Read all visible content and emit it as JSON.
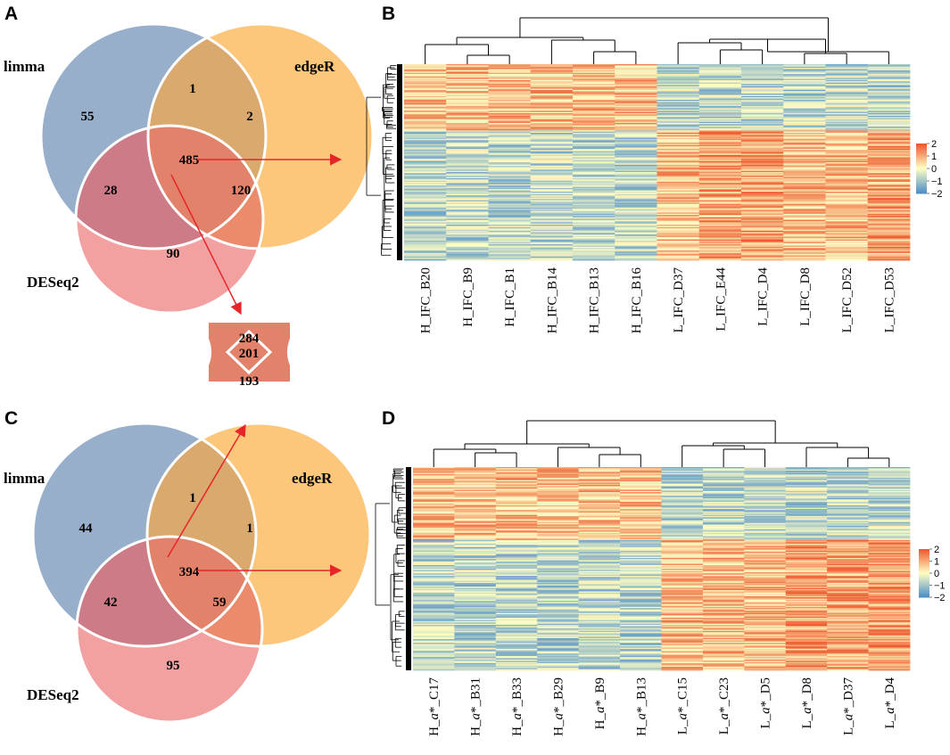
{
  "chart_data": [
    {
      "type": "venn",
      "panel": "A",
      "sets": [
        "limma",
        "edgeR",
        "DESeq2"
      ],
      "regions": {
        "limma_only": 55,
        "edgeR_only": 2,
        "deseq2_only": 90,
        "limma_edgeR": 1,
        "limma_deseq2": 28,
        "edgeR_deseq2": 120,
        "all_three": 485
      },
      "colors": {
        "limma": "#98AFCB",
        "edgeR": "#FCC77A",
        "deseq2": "#F2A0A0",
        "limma_edgeR": "#D9A96E",
        "limma_deseq2": "#CC7B87",
        "edgeR_deseq2": "#EC8A6C",
        "all_three": "#E3826A"
      }
    },
    {
      "type": "venn",
      "panel": "C",
      "sets": [
        "limma",
        "edgeR",
        "DESeq2"
      ],
      "regions": {
        "limma_only": 44,
        "edgeR_only": 1,
        "deseq2_only": 95,
        "limma_edgeR": 1,
        "limma_deseq2": 42,
        "edgeR_deseq2": 59,
        "all_three": 394
      }
    },
    {
      "type": "venn2",
      "panel": "inset",
      "values": {
        "top_only": 284,
        "overlap": 201,
        "bottom_only": 193
      },
      "color": "#E3826A"
    },
    {
      "type": "heatmap",
      "panel": "B",
      "columns": [
        "H_IFC_B20",
        "H_IFC_B9",
        "H_IFC_B1",
        "H_IFC_B14",
        "H_IFC_B13",
        "H_IFC_B16",
        "L_IFC_D37",
        "L_IFC_E44",
        "L_IFC_D4",
        "L_IFC_D8",
        "L_IFC_D52",
        "L_IFC_D53"
      ],
      "colorbar": {
        "ticks": [
          "2",
          "1",
          "0",
          "−1",
          "−2"
        ],
        "range": [
          -2,
          2
        ]
      },
      "upper_block_fraction": 0.34
    },
    {
      "type": "heatmap",
      "panel": "D",
      "columns": [
        {
          "pre": "H_",
          "it": "a",
          "post": "*_C17"
        },
        {
          "pre": "H_",
          "it": "a",
          "post": "*_B31"
        },
        {
          "pre": "H_",
          "it": "a",
          "post": "*_B33"
        },
        {
          "pre": "H_",
          "it": "a",
          "post": "*_B29"
        },
        {
          "pre": "H_",
          "it": "a",
          "post": "*_B9"
        },
        {
          "pre": "H_",
          "it": "a",
          "post": "*_B13"
        },
        {
          "pre": "L_",
          "it": "a",
          "post": "*_C15"
        },
        {
          "pre": "L_",
          "it": "a",
          "post": "*_C23"
        },
        {
          "pre": "L_",
          "it": "a",
          "post": "*_D5"
        },
        {
          "pre": "L_",
          "it": "a",
          "post": "*_D8"
        },
        {
          "pre": "L_",
          "it": "a",
          "post": "*_D37"
        },
        {
          "pre": "L_",
          "it": "a",
          "post": "*_D4"
        }
      ],
      "colorbar": {
        "ticks": [
          "2",
          "1",
          "0",
          "−1",
          "−2"
        ],
        "range": [
          -2,
          2
        ]
      },
      "upper_block_fraction": 0.36
    }
  ],
  "panel_letters": [
    "A",
    "B",
    "C",
    "D"
  ],
  "palette": {
    "low": "#4F8FC9",
    "mid": "#FFFFC4",
    "high": "#EE5A2F",
    "arrow": "#E8242B"
  }
}
